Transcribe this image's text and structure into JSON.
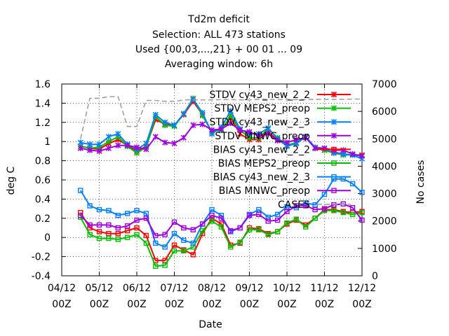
{
  "chart_data": {
    "type": "line",
    "title_lines": [
      "Td2m deficit",
      "Selection: ALL    473 stations",
      "Used {00,03,...,21} + 00 01 ... 09",
      "Averaging window:  6h"
    ],
    "xlabel": "Date",
    "ylabel": "deg C",
    "y2label": "No cases",
    "xlim": [
      0,
      8
    ],
    "ylim": [
      -0.4,
      1.6
    ],
    "y2lim": [
      0,
      7000
    ],
    "xticks": [
      {
        "pos": 0,
        "label1": "04/12",
        "label2": "00Z"
      },
      {
        "pos": 1,
        "label1": "05/12",
        "label2": "00Z"
      },
      {
        "pos": 2,
        "label1": "06/12",
        "label2": "00Z"
      },
      {
        "pos": 3,
        "label1": "07/12",
        "label2": "00Z"
      },
      {
        "pos": 4,
        "label1": "08/12",
        "label2": "00Z"
      },
      {
        "pos": 5,
        "label1": "09/12",
        "label2": "00Z"
      },
      {
        "pos": 6,
        "label1": "10/12",
        "label2": "00Z"
      },
      {
        "pos": 7,
        "label1": "11/12",
        "label2": "00Z"
      },
      {
        "pos": 8,
        "label1": "12/12",
        "label2": "00Z"
      }
    ],
    "yticks": [
      "-0.4",
      "-0.2",
      "0",
      "0.2",
      "0.4",
      "0.6",
      "0.8",
      "1",
      "1.2",
      "1.4",
      "1.6"
    ],
    "y2ticks": [
      "0",
      "1000",
      "2000",
      "3000",
      "4000",
      "5000",
      "6000",
      "7000"
    ],
    "x": [
      0.5,
      0.75,
      1.0,
      1.25,
      1.5,
      1.75,
      2.0,
      2.25,
      2.5,
      2.75,
      3.0,
      3.25,
      3.5,
      3.75,
      4.0,
      4.25,
      4.5,
      4.75,
      5.0,
      5.25,
      5.5,
      5.75,
      6.0,
      6.25,
      6.5,
      6.75,
      7.0,
      7.25,
      7.5,
      7.75,
      8.0
    ],
    "series": [
      {
        "name": "STDV cy43_new_2_2",
        "color": "#ff0000",
        "marker": "x",
        "axis": "y",
        "values": [
          0.95,
          0.93,
          0.92,
          0.98,
          1.02,
          0.96,
          0.9,
          0.95,
          1.23,
          1.18,
          1.17,
          1.28,
          1.42,
          1.28,
          1.1,
          1.13,
          1.25,
          1.08,
          1.02,
          1.02,
          1.1,
          1.02,
          0.96,
          0.98,
          1.05,
          0.93,
          0.91,
          0.89,
          0.87,
          0.86,
          0.86
        ]
      },
      {
        "name": "STDV MEPS2_preop",
        "color": "#00c000",
        "marker": "x",
        "axis": "y",
        "values": [
          0.95,
          0.93,
          0.94,
          1.0,
          1.05,
          0.95,
          0.88,
          0.94,
          1.26,
          1.17,
          1.16,
          1.29,
          1.45,
          1.27,
          1.1,
          1.12,
          1.27,
          1.12,
          1.04,
          1.04,
          1.13,
          1.04,
          0.96,
          0.99,
          1.05,
          0.93,
          0.91,
          0.88,
          0.86,
          0.86,
          0.85
        ]
      },
      {
        "name": "STDV cy43_new_2_3",
        "color": "#0080ff",
        "marker": "x",
        "axis": "y",
        "values": [
          0.99,
          0.97,
          0.97,
          1.05,
          1.08,
          0.97,
          0.92,
          0.98,
          1.28,
          1.2,
          1.17,
          1.29,
          1.44,
          1.3,
          1.08,
          1.15,
          1.32,
          1.13,
          1.08,
          1.08,
          1.14,
          1.03,
          0.95,
          0.98,
          1.05,
          0.94,
          0.93,
          0.88,
          0.87,
          0.86,
          0.82
        ]
      },
      {
        "name": "STDV MNWC_preop",
        "color": "#a000e0",
        "marker": "x",
        "axis": "y",
        "values": [
          0.93,
          0.91,
          0.9,
          0.93,
          0.96,
          0.96,
          0.94,
          0.92,
          1.05,
          0.99,
          0.98,
          1.04,
          1.17,
          1.18,
          1.12,
          1.13,
          1.19,
          1.12,
          1.1,
          1.06,
          1.08,
          1.01,
          0.99,
          1.02,
          1.04,
          0.93,
          0.93,
          0.91,
          0.91,
          0.87,
          0.85
        ]
      },
      {
        "name": "BIAS cy43_new_2_2",
        "color": "#ff0000",
        "marker": "square",
        "axis": "y",
        "values": [
          0.26,
          0.1,
          0.06,
          0.04,
          0.04,
          0.07,
          0.1,
          0.02,
          -0.24,
          -0.24,
          -0.08,
          -0.13,
          -0.18,
          0.04,
          0.2,
          0.14,
          -0.08,
          -0.06,
          0.1,
          0.09,
          0.04,
          0.06,
          0.14,
          0.18,
          0.13,
          0.2,
          0.29,
          0.29,
          0.27,
          0.26,
          0.27
        ]
      },
      {
        "name": "BIAS MEPS2_preop",
        "color": "#00c000",
        "marker": "square",
        "axis": "y",
        "values": [
          0.21,
          0.03,
          -0.01,
          -0.01,
          -0.02,
          0.0,
          0.03,
          -0.06,
          -0.3,
          -0.29,
          -0.14,
          -0.14,
          -0.1,
          0.07,
          0.17,
          0.11,
          -0.1,
          -0.05,
          0.08,
          0.08,
          0.03,
          0.06,
          0.15,
          0.19,
          0.11,
          0.2,
          0.28,
          0.28,
          0.26,
          0.24,
          0.26
        ]
      },
      {
        "name": "BIAS cy43_new_2_3",
        "color": "#0080ff",
        "marker": "square",
        "axis": "y",
        "values": [
          0.49,
          0.33,
          0.29,
          0.28,
          0.23,
          0.25,
          0.28,
          0.25,
          -0.06,
          -0.1,
          0.04,
          -0.03,
          -0.06,
          0.14,
          0.29,
          0.23,
          0.06,
          0.1,
          0.24,
          0.29,
          0.21,
          0.24,
          0.32,
          0.31,
          0.36,
          0.34,
          0.45,
          0.61,
          0.61,
          0.56,
          0.47
        ]
      },
      {
        "name": "BIAS MNWC_preop",
        "color": "#a000e0",
        "marker": "square",
        "axis": "y",
        "values": [
          0.23,
          0.13,
          0.13,
          0.13,
          0.1,
          0.12,
          0.18,
          0.2,
          0.02,
          0.03,
          0.16,
          0.1,
          0.08,
          0.14,
          0.23,
          0.2,
          0.07,
          0.1,
          0.23,
          0.24,
          0.17,
          0.18,
          0.27,
          0.33,
          0.33,
          0.29,
          0.3,
          0.34,
          0.35,
          0.31,
          0.18
        ]
      },
      {
        "name": "CASES",
        "color": "#a0a0a0",
        "marker": "none",
        "dashed": true,
        "axis": "y2",
        "x": [
          0.5,
          0.75,
          1.0,
          1.25,
          1.5,
          1.75,
          2.0,
          2.25,
          2.5,
          2.75,
          3.0,
          3.25,
          3.5,
          3.75,
          4.0,
          4.25,
          4.5,
          4.75,
          5.0,
          5.25,
          5.5,
          5.75,
          6.0,
          6.25,
          6.5,
          6.75,
          7.0,
          7.25,
          7.5,
          7.75,
          8.0
        ],
        "values": [
          5000,
          6480,
          6480,
          6540,
          6540,
          5450,
          5450,
          6400,
          6400,
          6370,
          6370,
          6420,
          6420,
          6420,
          6420,
          6430,
          6430,
          6420,
          6420,
          6440,
          6440,
          6430,
          6430,
          6430,
          6430,
          6440,
          6440,
          6440,
          6440,
          6450,
          6450
        ]
      }
    ]
  }
}
